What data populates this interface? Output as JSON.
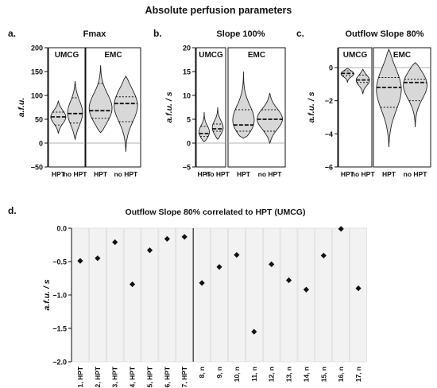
{
  "figure_title": "Absolute perfusion parameters",
  "chart_data": [
    {
      "panel": "a.",
      "type": "violin",
      "title": "Fmax",
      "ylabel": "a.f.u.",
      "ylim": [
        -50,
        200
      ],
      "yticks": [
        "−50",
        "0",
        "50",
        "100",
        "150",
        "200"
      ],
      "ytick_values": [
        -50,
        0,
        50,
        100,
        150,
        200
      ],
      "groups": [
        {
          "name": "UMCG",
          "violins": [
            {
              "label": "HPT",
              "min": 20,
              "max": 88,
              "q1": 38,
              "median": 55,
              "q3": 65
            },
            {
              "label": "no HPT",
              "min": 8,
              "max": 130,
              "q1": 42,
              "median": 62,
              "q3": 95
            }
          ]
        },
        {
          "name": "EMC",
          "violins": [
            {
              "label": "HPT",
              "min": 22,
              "max": 163,
              "q1": 52,
              "median": 68,
              "q3": 125
            },
            {
              "label": "no HPT",
              "min": -18,
              "max": 140,
              "q1": 45,
              "median": 83,
              "q3": 97
            }
          ]
        }
      ]
    },
    {
      "panel": "b.",
      "type": "violin",
      "title": "Slope 100%",
      "ylabel": "a.f.u. / s",
      "ylim": [
        -5,
        20
      ],
      "yticks": [
        "−5",
        "0",
        "5",
        "10",
        "15",
        "20"
      ],
      "ytick_values": [
        -5,
        0,
        5,
        10,
        15,
        20
      ],
      "groups": [
        {
          "name": "UMCG",
          "violins": [
            {
              "label": "HPT",
              "min": 0.3,
              "max": 6.5,
              "q1": 1.4,
              "median": 2.0,
              "q3": 3.5
            },
            {
              "label": "no HPT",
              "min": 0.8,
              "max": 7.5,
              "q1": 2.5,
              "median": 3.0,
              "q3": 4.0
            }
          ]
        },
        {
          "name": "EMC",
          "violins": [
            {
              "label": "HPT",
              "min": 1.0,
              "max": 15.0,
              "q1": 2.5,
              "median": 3.8,
              "q3": 7.0
            },
            {
              "label": "no HPT",
              "min": 0.0,
              "max": 10.5,
              "q1": 2.5,
              "median": 5.0,
              "q3": 7.0
            }
          ]
        }
      ]
    },
    {
      "panel": "c.",
      "type": "violin",
      "title": "Outflow Slope 80%",
      "ylabel": "a.f.u. / s",
      "ylim": [
        -6,
        1.2
      ],
      "yticks": [
        "−6",
        "−4",
        "−2",
        "0"
      ],
      "ytick_values": [
        -6,
        -4,
        -2,
        0
      ],
      "groups": [
        {
          "name": "UMCG",
          "violins": [
            {
              "label": "HPT",
              "min": -0.9,
              "max": -0.05,
              "q1": -0.5,
              "median": -0.35,
              "q3": -0.2
            },
            {
              "label": "no HPT",
              "min": -1.6,
              "max": -0.1,
              "q1": -0.9,
              "median": -0.75,
              "q3": -0.45
            }
          ]
        },
        {
          "name": "EMC",
          "violins": [
            {
              "label": "HPT",
              "min": -4.8,
              "max": 1.1,
              "q1": -2.4,
              "median": -1.2,
              "q3": -0.6
            },
            {
              "label": "no HPT",
              "min": -3.6,
              "max": 0.3,
              "q1": -2.0,
              "median": -0.9,
              "q3": -0.7
            }
          ]
        }
      ]
    },
    {
      "panel": "d.",
      "type": "scatter",
      "title": "Outflow Slope 80% correlated to HPT (UMCG)",
      "ylabel": "a.f.u. / s",
      "ylim": [
        -2.0,
        0.0
      ],
      "yticks": [
        "0.0",
        "−0.5",
        "−1.0",
        "−1.5",
        "−2.0"
      ],
      "ytick_values": [
        0,
        -0.5,
        -1.0,
        -1.5,
        -2.0
      ],
      "categories": [
        "1, HPT",
        "2, HPT",
        "3, HPT",
        "4, HPT",
        "5, HPT",
        "6, HPT",
        "7, HPT",
        "8, n",
        "9, n",
        "10, n",
        "11, n",
        "12, n",
        "13, n",
        "14, n",
        "15, n",
        "16, n",
        "17, n"
      ],
      "values": [
        -0.49,
        -0.45,
        -0.21,
        -0.84,
        -0.33,
        -0.16,
        -0.13,
        -0.82,
        -0.58,
        -0.4,
        -1.55,
        -0.54,
        -0.78,
        -0.92,
        -0.41,
        -0.01,
        -0.9
      ],
      "divider_after": 7
    }
  ]
}
